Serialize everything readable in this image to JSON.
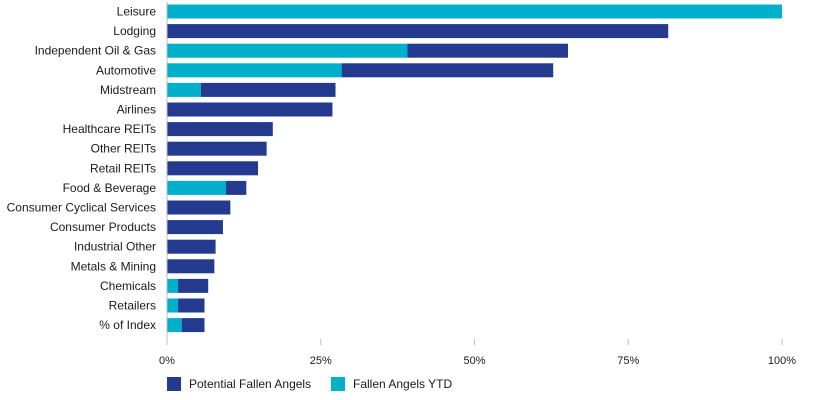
{
  "colors": {
    "potential": "#233a8f",
    "ytd": "#00b0ca",
    "axis": "#bdbdbd",
    "background": "#ffffff"
  },
  "chart_data": {
    "type": "bar",
    "orientation": "horizontal",
    "stacked": true,
    "title": "",
    "xlabel": "",
    "ylabel": "",
    "xlim": [
      0,
      100
    ],
    "x_tick_values": [
      0,
      25,
      50,
      75,
      100
    ],
    "x_tick_labels": [
      "0%",
      "25%",
      "50%",
      "75%",
      "100%"
    ],
    "grid": false,
    "legend_position": "bottom-left",
    "categories": [
      "Leisure",
      "Lodging",
      "Independent Oil & Gas",
      "Automotive",
      "Midstream",
      "Airlines",
      "Healthcare REITs",
      "Other REITs",
      "Retail REITs",
      "Food & Beverage",
      "Consumer Cyclical Services",
      "Consumer Products",
      "Industrial Other",
      "Metals & Mining",
      "Chemicals",
      "Retailers",
      "% of Index"
    ],
    "series": [
      {
        "name": "Fallen Angels YTD",
        "color_key": "ytd",
        "values": [
          100,
          0,
          39.1,
          28.4,
          5.5,
          0,
          0,
          0,
          0,
          9.6,
          0,
          0,
          0,
          0,
          1.8,
          1.8,
          2.4
        ]
      },
      {
        "name": "Potential Fallen Angels",
        "color_key": "potential",
        "values": [
          0,
          81.5,
          26.1,
          34.4,
          21.9,
          26.9,
          17.2,
          16.2,
          14.8,
          3.3,
          10.3,
          9.1,
          7.9,
          7.7,
          4.9,
          4.3,
          3.7
        ]
      }
    ]
  },
  "legend": [
    {
      "label": "Potential Fallen Angels",
      "color_key": "potential"
    },
    {
      "label": "Fallen Angels YTD",
      "color_key": "ytd"
    }
  ]
}
